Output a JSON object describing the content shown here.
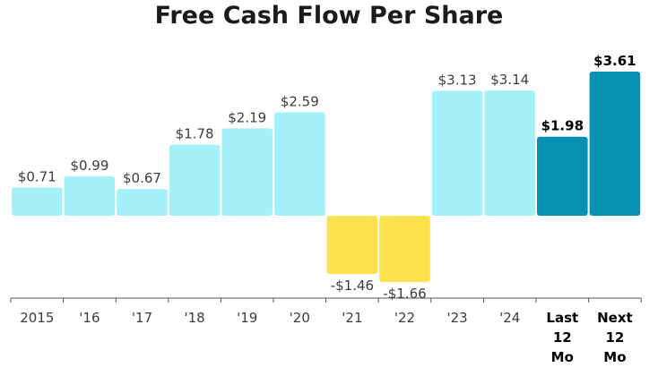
{
  "chart_data": {
    "type": "bar",
    "title": "Free Cash Flow Per Share",
    "categories": [
      "2015",
      "'16",
      "'17",
      "'18",
      "'19",
      "'20",
      "'21",
      "'22",
      "'23",
      "'24",
      "Last 12 Mo",
      "Next 12 Mo"
    ],
    "values": [
      0.71,
      0.99,
      0.67,
      1.78,
      2.19,
      2.59,
      -1.46,
      -1.66,
      3.13,
      3.14,
      1.98,
      3.61
    ],
    "value_labels": [
      "$0.71",
      "$0.99",
      "$0.67",
      "$1.78",
      "$2.19",
      "$2.59",
      "-$1.46",
      "-$1.66",
      "$3.13",
      "$3.14",
      "$1.98",
      "$3.61"
    ],
    "highlighted": [
      false,
      false,
      false,
      false,
      false,
      false,
      false,
      false,
      false,
      false,
      true,
      true
    ],
    "ylim": [
      -1.66,
      3.61
    ],
    "grid": false,
    "colors": {
      "positive": "#a6f0fa",
      "negative": "#fde14d",
      "highlight": "#0891b2",
      "axis": "#555555"
    }
  }
}
